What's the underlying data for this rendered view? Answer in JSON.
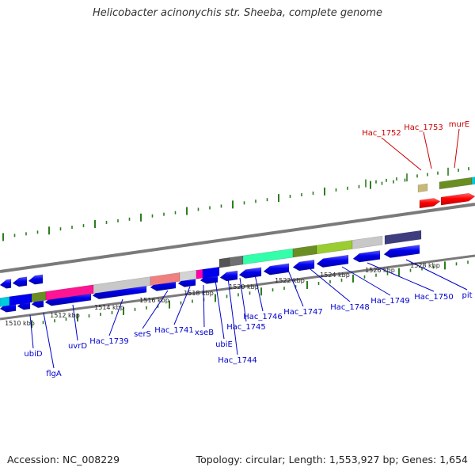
{
  "title": "Helicobacter acinonychis str. Sheeba, complete genome",
  "footer": {
    "accession": "Accession: NC_008229",
    "summary": "Topology: circular; Length: 1,553,927 bp; Genes: 1,654"
  },
  "colors": {
    "gene_blue": "#0000ee",
    "gene_red": "#ff0000",
    "label_blue": "#0000cc",
    "label_red": "#cc0000",
    "backbone": "#888888",
    "tick_green": "#2d7d1e"
  },
  "scale_labels": [
    "1510 kbp",
    "1512 kbp",
    "1514 kbp",
    "1516 kbp",
    "1518 kbp",
    "1520 kbp",
    "1522 kbp",
    "1524 kbp",
    "1526 kbp",
    "1528 kbp"
  ],
  "gene_labels_bottom": [
    "ubiD",
    "flgA",
    "uvrD",
    "Hac_1739",
    "serS",
    "Hac_1741",
    "xseB",
    "ubiE",
    "Hac_1744",
    "Hac_1745",
    "Hac_1746",
    "Hac_1747",
    "Hac_1748",
    "Hac_1749",
    "Hac_1750",
    "pit"
  ],
  "gene_labels_top": [
    "Hac_1752",
    "Hac_1753",
    "murE"
  ]
}
